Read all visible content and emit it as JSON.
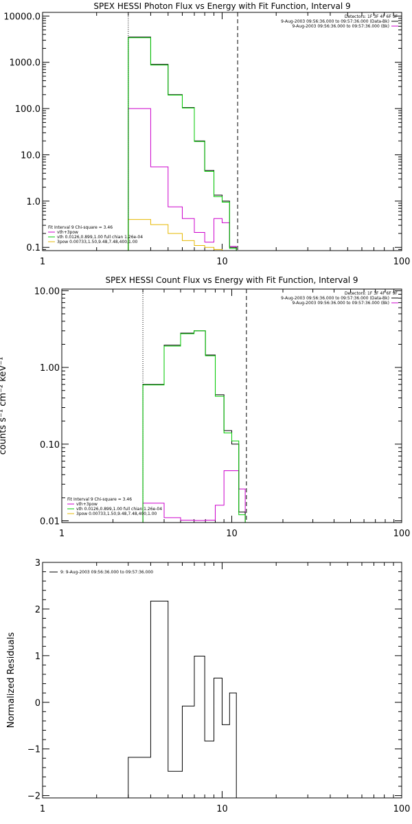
{
  "chart_data": [
    {
      "type": "line",
      "title": "SPEX HESSI Photon Flux vs Energy with Fit Function, Interval 9",
      "xlabel": "",
      "ylabel": "",
      "xscale": "log",
      "yscale": "log",
      "xlim": [
        1,
        100
      ],
      "ylim": [
        0.085,
        12000
      ],
      "xticks": [
        {
          "v": 1,
          "label": "1"
        },
        {
          "v": 10,
          "label": "10"
        },
        {
          "v": 100,
          "label": "100"
        }
      ],
      "yticks": [
        {
          "v": 10000,
          "label": "10000.0"
        },
        {
          "v": 1000,
          "label": "1000.0"
        },
        {
          "v": 100,
          "label": "100.0"
        },
        {
          "v": 10,
          "label": "10.0"
        },
        {
          "v": 1,
          "label": "1.0"
        },
        {
          "v": 0.1,
          "label": "0.1"
        }
      ],
      "vlines": [
        {
          "x": 3,
          "style": "dotted"
        },
        {
          "x": 12.2,
          "style": "dashed"
        }
      ],
      "edges": [
        3,
        4,
        5,
        6,
        7,
        8,
        9,
        10,
        11,
        12
      ],
      "series": [
        {
          "name": "",
          "color": "#000000",
          "values": [
            3500,
            900,
            200,
            105,
            20,
            4.6,
            1.35,
            1.0,
            0.1
          ]
        },
        {
          "name": "vth+3pow",
          "color": "#cc00cc",
          "values": [
            100,
            5.5,
            0.75,
            0.42,
            0.21,
            0.13,
            0.42,
            0.34,
            0.105
          ]
        },
        {
          "name": "vth 0.0126,0.899,1.00  full chian 1.26e-04",
          "color": "#00cc00",
          "values": [
            3400,
            870,
            195,
            103,
            19.5,
            4.4,
            1.25,
            0.95,
            0.095
          ]
        },
        {
          "name": "3pow 0.00733,1.50,9.48,7.48,400,1.00",
          "color": "#e6b800",
          "values": [
            0.4,
            0.31,
            0.2,
            0.14,
            0.11,
            0.1,
            0.09,
            0.085,
            0.08
          ]
        }
      ],
      "legend_header": "Fit Interval 9   Chi-square = 3.46",
      "legend_right": [
        {
          "text": "Detectors: 1F 3F 4F 6F 9F",
          "color": ""
        },
        {
          "text": "9-Aug-2003 09:56:36.000 to 09:57:36.000 (Data-Bk)",
          "color": "#000000"
        },
        {
          "text": "9-Aug-2003 09:56:36.000 to 09:57:36.000 (Bk)",
          "color": "#cc00cc"
        }
      ],
      "legend_placement": "bottom-left"
    },
    {
      "type": "line",
      "title": "SPEX HESSI Count Flux vs Energy with Fit Function, Interval 9",
      "xlabel": "",
      "ylabel": "counts s⁻¹ cm⁻² keV⁻¹",
      "xscale": "log",
      "yscale": "log",
      "xlim": [
        1,
        100
      ],
      "ylim": [
        0.0095,
        10.5
      ],
      "xticks": [
        {
          "v": 1,
          "label": "1"
        },
        {
          "v": 10,
          "label": "10"
        },
        {
          "v": 100,
          "label": "100"
        }
      ],
      "yticks": [
        {
          "v": 10,
          "label": "10.00"
        },
        {
          "v": 1,
          "label": "1.00"
        },
        {
          "v": 0.1,
          "label": "0.10"
        },
        {
          "v": 0.01,
          "label": "0.01"
        }
      ],
      "vlines": [
        {
          "x": 3,
          "style": "dotted"
        },
        {
          "x": 12.2,
          "style": "dashed"
        }
      ],
      "edges": [
        3,
        4,
        5,
        6,
        7,
        8,
        9,
        10,
        11,
        12
      ],
      "series": [
        {
          "name": "",
          "color": "#000000",
          "values": [
            0.6,
            1.95,
            2.8,
            3.0,
            1.45,
            0.44,
            0.15,
            0.1,
            0.013
          ]
        },
        {
          "name": "vth+3pow",
          "color": "#cc00cc",
          "values": [
            0.017,
            0.011,
            0.0102,
            0.0101,
            0.0102,
            0.016,
            0.045,
            0.045,
            0.026
          ]
        },
        {
          "name": "vth 0.0126,0.899,1.00  full chian 1.26e-04",
          "color": "#00cc00",
          "values": [
            0.59,
            1.9,
            2.75,
            3.0,
            1.42,
            0.42,
            0.14,
            0.11,
            0.012
          ]
        }
      ],
      "legend_header": "Fit Interval 9   Chi-square = 3.46",
      "legend_right": [
        {
          "text": "Detectors: 1F 3F 4F 6F 9F",
          "color": ""
        },
        {
          "text": "9-Aug-2003 09:56:36.000 to 09:57:36.000 (Data-Bk)",
          "color": "#000000"
        },
        {
          "text": "9-Aug-2003 09:56:36.000 to 09:57:36.000 (Bk)",
          "color": "#cc00cc"
        }
      ],
      "extra_legend": {
        "text": "3pow 0.00733,1.50,9.48,7.48,400,1.00",
        "color": "#e6b800"
      },
      "legend_placement": "bottom-left"
    },
    {
      "type": "line",
      "title": "",
      "xlabel": "",
      "ylabel": "Normalized Residuals",
      "xscale": "log",
      "yscale": "linear",
      "xlim": [
        1,
        100
      ],
      "ylim": [
        -2.05,
        3
      ],
      "xticks": [
        {
          "v": 1,
          "label": "1"
        },
        {
          "v": 10,
          "label": "10"
        },
        {
          "v": 100,
          "label": "100"
        }
      ],
      "yticks": [
        {
          "v": 3,
          "label": "3"
        },
        {
          "v": 2,
          "label": "2"
        },
        {
          "v": 1,
          "label": "1"
        },
        {
          "v": 0,
          "label": "0"
        },
        {
          "v": -1,
          "label": "−1"
        },
        {
          "v": -2,
          "label": "−2"
        }
      ],
      "edges": [
        3,
        4,
        5,
        6,
        7,
        8,
        9,
        10,
        11,
        12
      ],
      "series": [
        {
          "name": "9: 9-Aug-2003 09:56:36.000 to 09:57:36.000",
          "color": "#000000",
          "values": [
            -1.18,
            2.17,
            -1.48,
            -0.08,
            0.99,
            -0.83,
            0.52,
            -0.48,
            0.2
          ]
        }
      ],
      "legend_placement": "top-left"
    }
  ]
}
